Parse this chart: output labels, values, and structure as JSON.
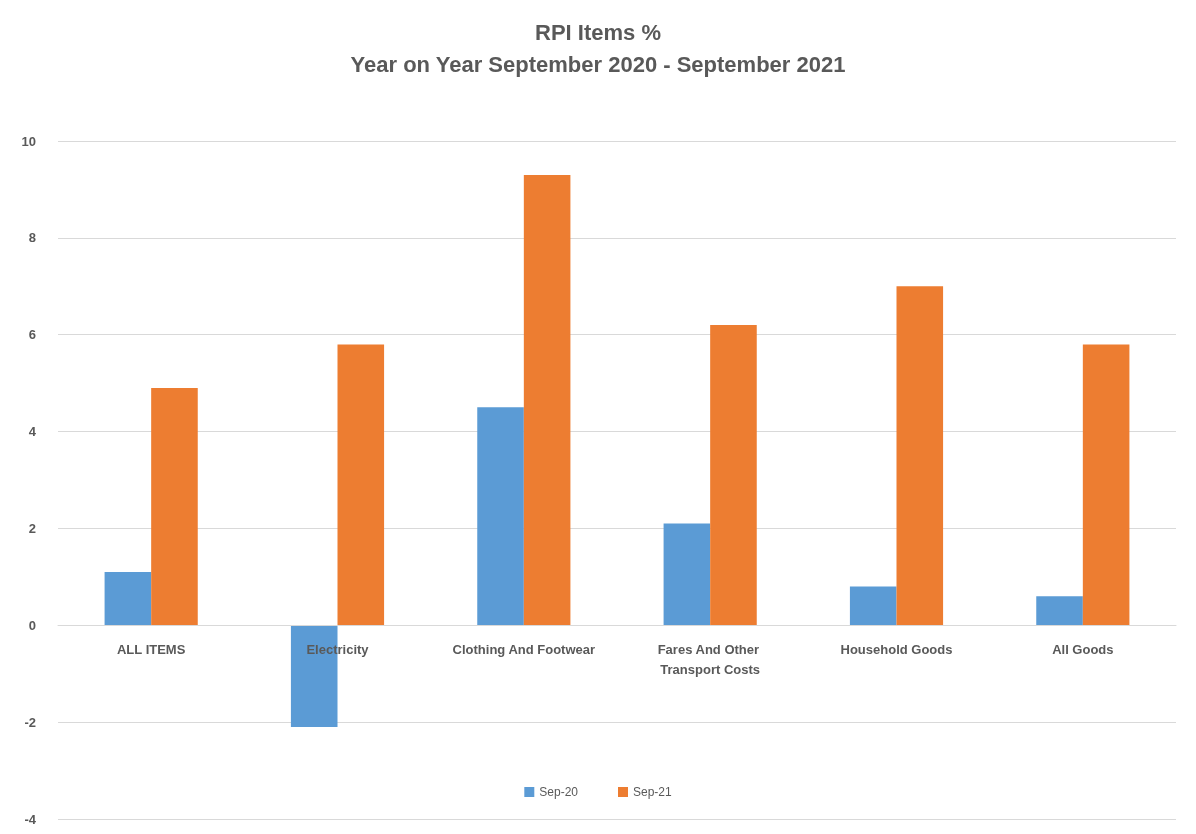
{
  "chart_data": {
    "type": "bar",
    "title": "RPI Items %",
    "subtitle": "Year on Year September 2020 - September 2021",
    "categories": [
      "ALL ITEMS",
      "Electricity",
      "Clothing And Footwear",
      "Fares And Other Transport Costs",
      "Household Goods",
      "All Goods"
    ],
    "series": [
      {
        "name": "Sep-20",
        "color": "#5b9bd5",
        "values": [
          1.1,
          -2.1,
          4.5,
          2.1,
          0.8,
          0.6
        ]
      },
      {
        "name": "Sep-21",
        "color": "#ed7d31",
        "values": [
          4.9,
          5.8,
          9.3,
          6.2,
          7.0,
          5.8
        ]
      }
    ],
    "ylim": [
      -4,
      10
    ],
    "yticks": [
      -4,
      -2,
      0,
      2,
      4,
      6,
      8,
      10
    ],
    "grid": "y",
    "legend": "bottom"
  }
}
